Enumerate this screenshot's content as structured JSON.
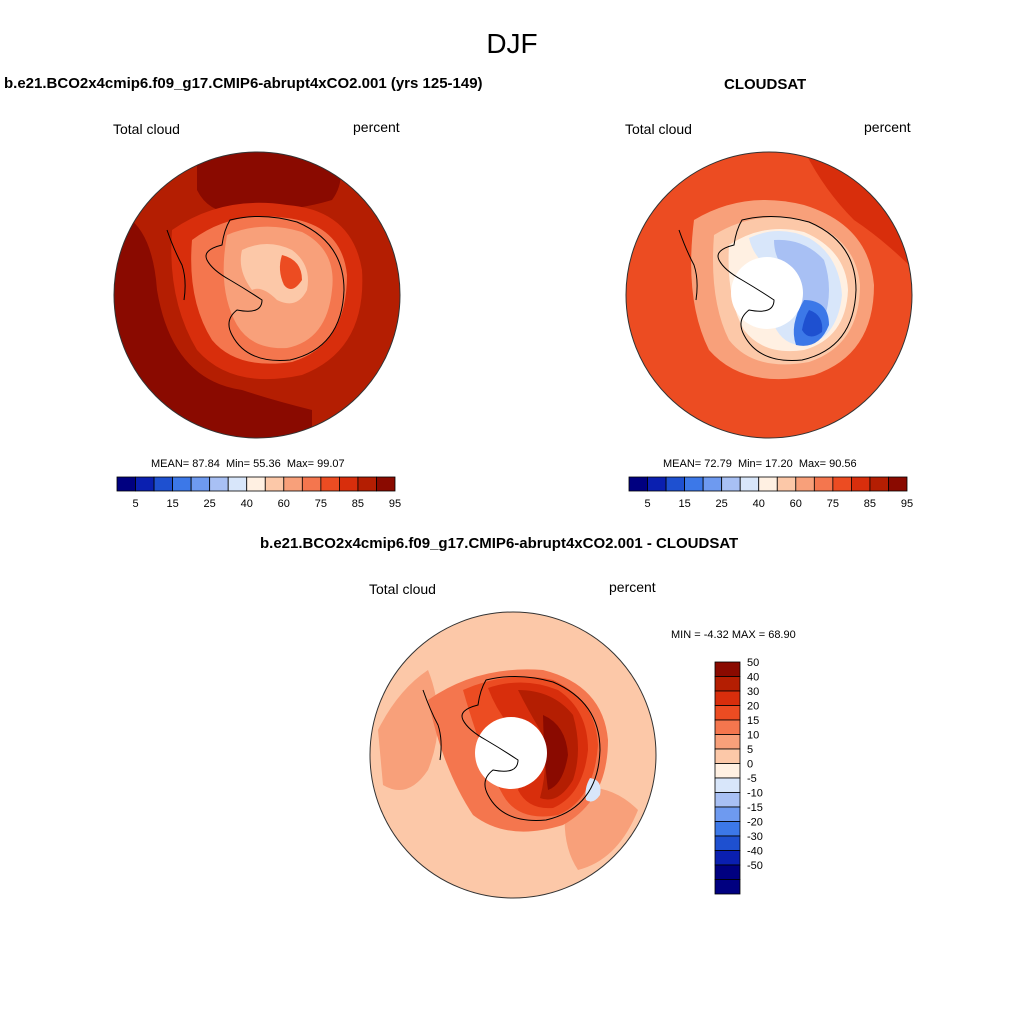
{
  "season": "DJF",
  "palette": [
    "#000080",
    "#0a1fb0",
    "#1e50d0",
    "#3c78e8",
    "#6e9af0",
    "#a8c0f4",
    "#d8e6fa",
    "#fff0e2",
    "#fcc8a8",
    "#f8a07a",
    "#f4764e",
    "#ec4c22",
    "#d82e0c",
    "#b41e02",
    "#8a0a00"
  ],
  "panels": {
    "left": {
      "title": "b.e21.BCO2x4cmip6.f09_g17.CMIP6-abrupt4xCO2.001 (yrs 125-149)",
      "variable": "Total cloud",
      "units": "percent",
      "mean_label": "MEAN=",
      "mean": "87.84",
      "min_label": "Min=",
      "min": "55.36",
      "max_label": "Max=",
      "max": "99.07"
    },
    "right": {
      "title": "CLOUDSAT",
      "variable": "Total cloud",
      "units": "percent",
      "mean_label": "MEAN=",
      "mean": "72.79",
      "min_label": "Min=",
      "min": "17.20",
      "max_label": "Max=",
      "max": "90.56"
    },
    "diff": {
      "title": "b.e21.BCO2x4cmip6.f09_g17.CMIP6-abrupt4xCO2.001 - CLOUDSAT",
      "variable": "Total cloud",
      "units": "percent",
      "stats": "MIN =  -4.32 MAX =  68.90"
    }
  },
  "colorbar_abs": {
    "levels": [
      "5",
      "10",
      "15",
      "20",
      "25",
      "30",
      "40",
      "50",
      "60",
      "70",
      "75",
      "80",
      "85",
      "90",
      "95"
    ],
    "tick_labels": [
      "5",
      "15",
      "25",
      "40",
      "60",
      "75",
      "85",
      "95"
    ]
  },
  "colorbar_diff": {
    "labels": [
      "50",
      "40",
      "30",
      "20",
      "15",
      "10",
      "5",
      "0",
      "-5",
      "-10",
      "-15",
      "-20",
      "-30",
      "-40",
      "-50"
    ],
    "palette": [
      "#8a0a00",
      "#b41e02",
      "#d82e0c",
      "#ec4c22",
      "#f4764e",
      "#f8a07a",
      "#fcc8a8",
      "#fff0e2",
      "#d8e6fa",
      "#a8c0f4",
      "#6e9af0",
      "#3c78e8",
      "#1e50d0",
      "#0a1fb0",
      "#000080"
    ]
  }
}
